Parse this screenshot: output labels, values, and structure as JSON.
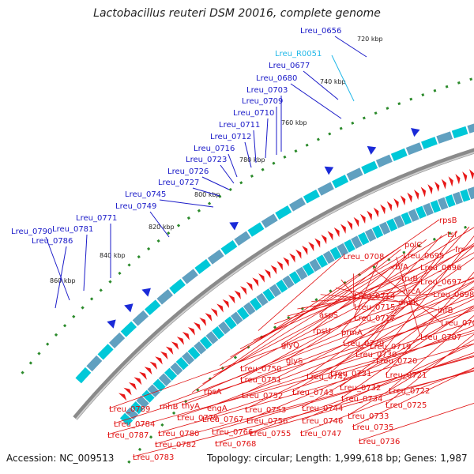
{
  "title": "Lactobacillus reuteri DSM 20016, complete genome",
  "footer": {
    "accession": "Accession: NC_009513",
    "summary": "Topology: circular; Length: 1,999,618 bp; Genes: 1,987"
  },
  "colors": {
    "backbone": "#8a8a8a",
    "forward_label": "#1a1ac8",
    "reverse_label": "#e01010",
    "rna_label": "#22b8e8",
    "forward_arrow": "#1a2ad8",
    "reverse_arrow": "#e81818",
    "dot": "#2a8a2a"
  },
  "kbp_ticks": [
    "720 kbp",
    "740 kbp",
    "760 kbp",
    "780 kbp",
    "800 kbp",
    "820 kbp",
    "840 kbp",
    "860 kbp"
  ],
  "forward_labels": [
    "Lreu_0656",
    "Lreu_0677",
    "Lreu_0680",
    "Lreu_0703",
    "Lreu_0709",
    "Lreu_0710",
    "Lreu_0711",
    "Lreu_0712",
    "Lreu_0716",
    "Lreu_0723",
    "Lreu_0726",
    "Lreu_0727",
    "Lreu_0745",
    "Lreu_0749",
    "Lreu_0771",
    "Lreu_0781",
    "Lreu_0790",
    "Lreu_0786"
  ],
  "rna_labels": [
    "Lreu_R0051"
  ],
  "reverse_labels": [
    "rpsB",
    "tsf",
    "frr",
    "polC",
    "Lreu_0695",
    "rbfA",
    "Lreu_0696",
    "Lreu_0708",
    "truB",
    "Lreu_0697",
    "hrcA",
    "Lreu_0698",
    "dnaK",
    "infB",
    "Lreu_0714",
    "Lreu_0715",
    "Lreu_0705",
    "Lreu_0717",
    "Lreu_0707",
    "aspS",
    "prmA",
    "rpsU",
    "Lreu_0729",
    "Lreu_0719",
    "Lreu_0730",
    "Lreu_0720",
    "glyQ",
    "Lreu_0731",
    "Lreu_0721",
    "glyS",
    "Lreu_0742",
    "Lreu_0750",
    "Lreu_0751",
    "Lreu_0732",
    "Lreu_0722",
    "Lreu_0743",
    "Lreu_0734",
    "Lreu_0725",
    "Lreu_0752",
    "Lreu_0744",
    "rpsA",
    "Lreu_0753",
    "Lreu_0733",
    "Lreu_0789",
    "rnhB",
    "thyA",
    "engA",
    "Lreu_0756",
    "Lreu_0746",
    "Lreu_0735",
    "Lreu_0784",
    "Lreu_0779",
    "Lreu_0767",
    "Lreu_0755",
    "Lreu_0747",
    "Lreu_0787",
    "Lreu_0780",
    "Lreu_0766",
    "Lreu_0782",
    "Lreu_0768",
    "Lreu_0736",
    "Lreu_0783"
  ]
}
